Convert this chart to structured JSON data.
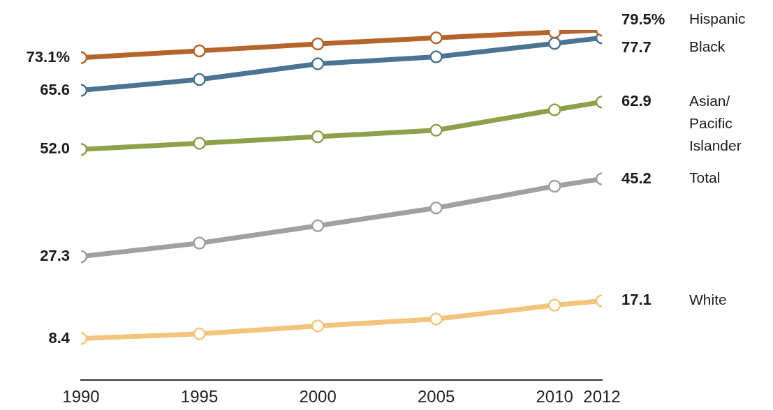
{
  "chart_data": {
    "type": "line",
    "x": [
      1990,
      1995,
      2000,
      2005,
      2010,
      2012
    ],
    "xlim": [
      1990,
      2012
    ],
    "xticks": [
      1990,
      1995,
      2000,
      2005,
      2010,
      2012
    ],
    "tick_labels": "x",
    "grid": false,
    "legend": false,
    "marker": "circle",
    "line_style": "solid",
    "series": [
      {
        "name": "Hispanic",
        "color": "#b5652b",
        "values": [
          73.1,
          74.7,
          76.3,
          77.7,
          79.0,
          79.5
        ],
        "value_labels": [
          "73.1%",
          null,
          null,
          null,
          null,
          "79.5%"
        ]
      },
      {
        "name": "Black",
        "color": "#4a7491",
        "values": [
          65.6,
          68.1,
          71.7,
          73.3,
          76.4,
          77.7
        ],
        "value_labels": [
          "65.6",
          null,
          null,
          null,
          null,
          "77.7"
        ]
      },
      {
        "name": "Asian/ Pacific Islander",
        "color": "#8ea04a",
        "values": [
          52.0,
          53.4,
          54.9,
          56.4,
          61.1,
          62.9
        ],
        "value_labels": [
          "52.0",
          null,
          null,
          null,
          null,
          "62.9"
        ]
      },
      {
        "name": "Total",
        "color": "#a0a0a0",
        "values": [
          27.3,
          30.4,
          34.4,
          38.5,
          43.5,
          45.2
        ],
        "value_labels": [
          "27.3",
          null,
          null,
          null,
          null,
          "45.2"
        ]
      },
      {
        "name": "White",
        "color": "#f2c57c",
        "values": [
          8.4,
          9.5,
          11.3,
          12.9,
          16.1,
          17.1
        ],
        "value_labels": [
          "8.4",
          null,
          null,
          null,
          null,
          "17.1"
        ]
      }
    ]
  }
}
